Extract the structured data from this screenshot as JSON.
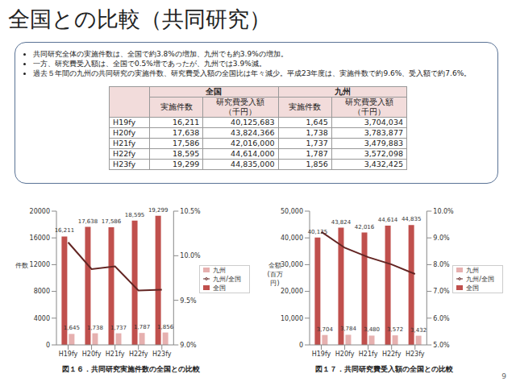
{
  "title": "全国との比較（共同研究）",
  "bullets": [
    "共同研究全体の実施件数は、全国で約3.8%の増加、九州でも約3.9%の増加。",
    "一方、研究費受入額は、全国で0.5%増であったが、九州では3.9%減。",
    "過去５年間の九州の共同研究の実施件数、研究費受入額の全国比は年々減少。平成23年度は、実施件数で約9.6%、受入額で約7.6%。"
  ],
  "table": {
    "group_headers": [
      "全国",
      "九州"
    ],
    "column_headers": [
      "実施件数",
      "研究費受入額\n（千円）",
      "実施件数",
      "研究費受入額\n（千円）"
    ],
    "rows": [
      [
        "H19fy",
        "16,211",
        "40,125,683",
        "1,645",
        "3,704,034"
      ],
      [
        "H20fy",
        "17,638",
        "43,824,366",
        "1,738",
        "3,783,877"
      ],
      [
        "H21fy",
        "17,586",
        "42,016,000",
        "1,737",
        "3,479,883"
      ],
      [
        "H22fy",
        "18,595",
        "44,614,000",
        "1,787",
        "3,572,098"
      ],
      [
        "H23fy",
        "19,299",
        "44,835,000",
        "1,856",
        "3,432,425"
      ]
    ]
  },
  "chart_data": [
    {
      "type": "bar",
      "title": "図１６．共同研究実施件数の全国との比較",
      "y_label": "件数",
      "categories": [
        "H19fy",
        "H20fy",
        "H21fy",
        "H22fy",
        "H23fy"
      ],
      "series": [
        {
          "name": "全国",
          "type": "bar",
          "color": "#c0504d",
          "data_labels": true,
          "values": [
            16211,
            17638,
            17586,
            18595,
            19299
          ],
          "value_labels": [
            "16,211",
            "17,638",
            "17,586",
            "18,595",
            "19,299"
          ]
        },
        {
          "name": "九州",
          "type": "bar",
          "color": "#e6b0af",
          "data_labels": true,
          "values": [
            1645,
            1738,
            1737,
            1787,
            1856
          ],
          "value_labels": [
            "1,645",
            "1,738",
            "1,737",
            "1,787",
            "1,856"
          ]
        },
        {
          "name": "九州/全国",
          "type": "line",
          "color": "#632523",
          "marker": "none",
          "axis": "y2",
          "values": [
            10.15,
            9.85,
            9.88,
            9.61,
            9.62
          ]
        }
      ],
      "ylim": [
        0,
        20000
      ],
      "yticks": [
        0,
        4000,
        8000,
        12000,
        16000,
        20000
      ],
      "y2lim": [
        9,
        10.5
      ],
      "y2ticks": [
        {
          "value": 9,
          "label": "9.0%"
        },
        {
          "value": 9.5,
          "label": "9.5%"
        },
        {
          "value": 10,
          "label": "10.0%"
        },
        {
          "value": 10.5,
          "label": "10.5%"
        }
      ],
      "legend": "right",
      "grid": false
    },
    {
      "type": "bar",
      "title": "図１７．共同研究費受入額の全国との比較",
      "y_label": "金額\n(百万円)",
      "categories": [
        "H19fy",
        "H20fy",
        "H21fy",
        "H22fy",
        "H23fy"
      ],
      "series": [
        {
          "name": "全国",
          "type": "bar",
          "color": "#c0504d",
          "data_labels": true,
          "values": [
            40125,
            43824,
            42016,
            44614,
            44835
          ],
          "value_labels": [
            "40,125",
            "43,824",
            "42,016",
            "44,614",
            "44,835"
          ]
        },
        {
          "name": "九州",
          "type": "bar",
          "color": "#e6b0af",
          "data_labels": true,
          "values": [
            3704,
            3784,
            3480,
            3572,
            3432
          ],
          "value_labels": [
            "3,704",
            "3,784",
            "3,480",
            "3,572",
            "3,432"
          ]
        },
        {
          "name": "九州/全国",
          "type": "line",
          "color": "#632523",
          "marker": "none",
          "axis": "y2",
          "values": [
            9.23,
            8.63,
            8.28,
            8.01,
            7.65
          ]
        }
      ],
      "ylim": [
        0,
        50000
      ],
      "yticks": [
        0,
        {
          "value": 10000,
          "label": "10,000"
        },
        {
          "value": 20000,
          "label": "20,000"
        },
        {
          "value": 30000,
          "label": "30,000"
        },
        {
          "value": 40000,
          "label": "40,000"
        },
        {
          "value": 50000,
          "label": "50,000"
        }
      ],
      "y2lim": [
        5,
        10
      ],
      "y2ticks": [
        {
          "value": 5,
          "label": "5.0%"
        },
        {
          "value": 6,
          "label": "6.0%"
        },
        {
          "value": 7,
          "label": "7.0%"
        },
        {
          "value": 8,
          "label": "8.0%"
        },
        {
          "value": 9,
          "label": "9.0%"
        },
        {
          "value": 10,
          "label": "10.0%"
        }
      ],
      "legend": "right",
      "grid": false
    }
  ],
  "page_number": "9"
}
